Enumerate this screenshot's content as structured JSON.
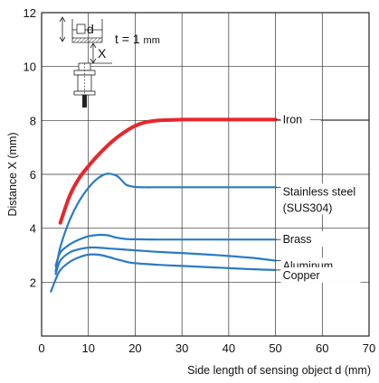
{
  "chart_data": {
    "type": "line",
    "title": "",
    "xlabel": "Side length of sensing object d (mm)",
    "ylabel": "Distance X (mm)",
    "xlim": [
      0,
      70
    ],
    "ylim": [
      0,
      12
    ],
    "x_ticks": [
      0,
      10,
      20,
      30,
      40,
      50,
      60,
      70
    ],
    "y_ticks": [
      2,
      4,
      6,
      8,
      10,
      12
    ],
    "grid": true,
    "inset": {
      "d_label": "d",
      "x_label": "X",
      "condition": "t = 1",
      "condition_unit": "mm"
    },
    "series": [
      {
        "name": "Iron",
        "color": "#e8262c",
        "x": [
          4,
          6,
          8,
          10,
          12,
          14,
          16,
          18,
          20,
          22,
          25,
          28,
          30,
          35,
          40,
          45,
          50
        ],
        "y": [
          4.2,
          5.2,
          5.85,
          6.3,
          6.7,
          7.05,
          7.35,
          7.6,
          7.8,
          7.92,
          8.0,
          8.02,
          8.03,
          8.03,
          8.03,
          8.03,
          8.03
        ]
      },
      {
        "name": "Stainless steel",
        "name_line2": "(SUS304)",
        "color": "#2a7bc4",
        "x": [
          3,
          4,
          6,
          8,
          10,
          12,
          14,
          16,
          17,
          18,
          19,
          20,
          22,
          25,
          30,
          35,
          40,
          45,
          50
        ],
        "y": [
          2.4,
          3.3,
          4.3,
          5.0,
          5.5,
          5.85,
          6.02,
          5.95,
          5.8,
          5.62,
          5.56,
          5.53,
          5.52,
          5.52,
          5.52,
          5.52,
          5.52,
          5.52,
          5.52
        ]
      },
      {
        "name": "Brass",
        "color": "#2a7bc4",
        "x": [
          3,
          4,
          6,
          8,
          10,
          12,
          14,
          16,
          18,
          20,
          25,
          30,
          35,
          40,
          45,
          50
        ],
        "y": [
          2.6,
          3.1,
          3.4,
          3.58,
          3.7,
          3.75,
          3.74,
          3.65,
          3.6,
          3.59,
          3.58,
          3.58,
          3.58,
          3.58,
          3.58,
          3.58
        ]
      },
      {
        "name": "Aluminum",
        "color": "#2a7bc4",
        "x": [
          3,
          4,
          6,
          8,
          10,
          12,
          15,
          20,
          25,
          30,
          35,
          40,
          45,
          50
        ],
        "y": [
          2.3,
          2.8,
          3.1,
          3.22,
          3.28,
          3.28,
          3.24,
          3.18,
          3.12,
          3.08,
          3.03,
          2.97,
          2.9,
          2.8
        ]
      },
      {
        "name": "Copper",
        "color": "#2a7bc4",
        "x": [
          2,
          3,
          4,
          6,
          8,
          10,
          12,
          14,
          16,
          18,
          20,
          25,
          30,
          35,
          40,
          45,
          50
        ],
        "y": [
          1.65,
          2.1,
          2.45,
          2.75,
          2.92,
          3.02,
          3.02,
          2.95,
          2.85,
          2.76,
          2.7,
          2.64,
          2.6,
          2.56,
          2.52,
          2.48,
          2.45
        ]
      }
    ]
  }
}
